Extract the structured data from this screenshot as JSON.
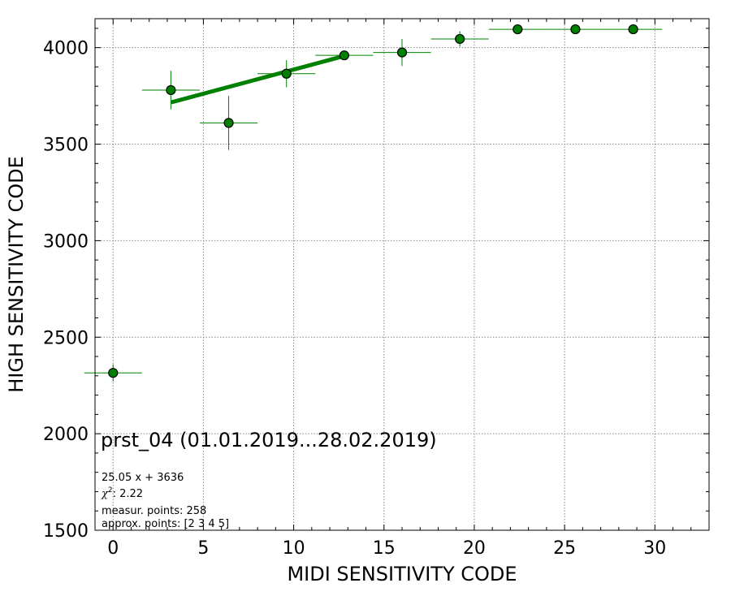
{
  "chart_data": {
    "type": "scatter",
    "title": "",
    "xlabel": "MIDI SENSITIVITY CODE",
    "ylabel": "HIGH SENSITIVITY CODE",
    "xlim": [
      -1,
      33
    ],
    "ylim": [
      1500,
      4150
    ],
    "xticks": [
      0,
      5,
      10,
      15,
      20,
      25,
      30
    ],
    "yticks": [
      1500,
      2000,
      2500,
      3000,
      3500,
      4000
    ],
    "grid": true,
    "colors": {
      "series": "#008000",
      "marker_edge": "#000000"
    },
    "series": [
      {
        "points": [
          {
            "x": 0,
            "y": 2315,
            "xerr": 1.6,
            "yerr": 45
          },
          {
            "x": 3.2,
            "y": 3780,
            "xerr": 1.6,
            "yerr": 100
          },
          {
            "x": 6.4,
            "y": 3610,
            "xerr": 1.6,
            "yerr": 140
          },
          {
            "x": 9.6,
            "y": 3865,
            "xerr": 1.6,
            "yerr": 70
          },
          {
            "x": 12.8,
            "y": 3960,
            "xerr": 1.6,
            "yerr": 15
          },
          {
            "x": 16.0,
            "y": 3975,
            "xerr": 1.6,
            "yerr": 70
          },
          {
            "x": 19.2,
            "y": 4045,
            "xerr": 1.6,
            "yerr": 40
          },
          {
            "x": 22.4,
            "y": 4095,
            "xerr": 1.6,
            "yerr": 0
          },
          {
            "x": 25.6,
            "y": 4095,
            "xerr": 1.6,
            "yerr": 0
          },
          {
            "x": 28.8,
            "y": 4095,
            "xerr": 1.6,
            "yerr": 0
          }
        ]
      }
    ],
    "fit_line": {
      "slope": 25.05,
      "intercept": 3636,
      "x_range": [
        3.2,
        12.8
      ]
    },
    "annotations": {
      "main": "prst_04 (01.01.2019...28.02.2019)",
      "equation": "25.05 x + 3636",
      "chi2_value": ": 2.22",
      "measur": "measur. points: 258",
      "approx": "approx. points: [2 3 4 5]"
    }
  }
}
